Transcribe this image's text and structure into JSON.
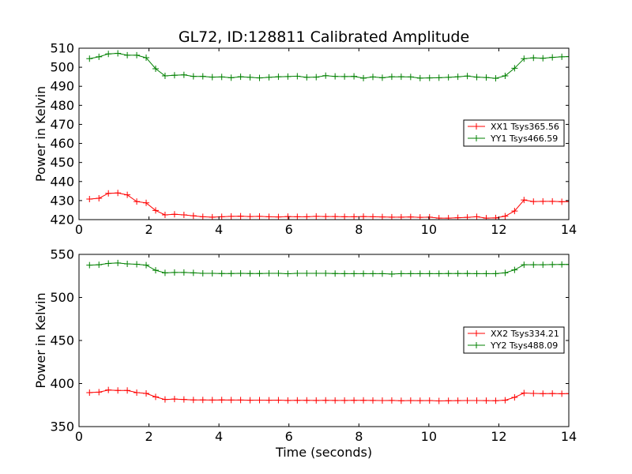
{
  "figure": {
    "title": "GL72, ID:128811 Calibrated Amplitude"
  },
  "chart_data": [
    {
      "type": "line",
      "title": "GL72, ID:128811 Calibrated Amplitude",
      "xlabel": "",
      "ylabel": "Power in Kelvin",
      "xlim": [
        0,
        14
      ],
      "ylim": [
        420,
        510
      ],
      "xticks": [
        0,
        2,
        4,
        6,
        8,
        10,
        12,
        14
      ],
      "yticks": [
        420,
        430,
        440,
        450,
        460,
        470,
        480,
        490,
        500,
        510
      ],
      "grid": false,
      "legend_position": "right",
      "x": [
        0.3,
        0.57,
        0.84,
        1.11,
        1.38,
        1.65,
        1.92,
        2.19,
        2.46,
        2.73,
        3.0,
        3.27,
        3.54,
        3.81,
        4.08,
        4.35,
        4.62,
        4.89,
        5.16,
        5.43,
        5.7,
        5.97,
        6.24,
        6.51,
        6.78,
        7.05,
        7.32,
        7.59,
        7.86,
        8.13,
        8.4,
        8.67,
        8.94,
        9.21,
        9.48,
        9.75,
        10.02,
        10.29,
        10.56,
        10.83,
        11.1,
        11.37,
        11.64,
        11.91,
        12.18,
        12.45,
        12.72,
        12.99,
        13.26,
        13.53,
        13.8,
        14.0
      ],
      "series": [
        {
          "name": "XX1 Tsys365.56",
          "color": "#ff0000",
          "values": [
            430.8,
            431.2,
            433.8,
            434.0,
            433.0,
            429.5,
            428.8,
            424.8,
            422.5,
            422.8,
            422.5,
            422.0,
            421.5,
            421.3,
            421.5,
            421.7,
            421.8,
            421.6,
            421.7,
            421.5,
            421.4,
            421.6,
            421.5,
            421.5,
            421.7,
            421.6,
            421.6,
            421.5,
            421.5,
            421.6,
            421.5,
            421.4,
            421.3,
            421.3,
            421.4,
            421.2,
            421.3,
            420.8,
            420.8,
            421.0,
            421.2,
            421.5,
            420.8,
            420.9,
            421.8,
            424.5,
            430.3,
            429.5,
            429.6,
            429.6,
            429.4,
            429.5
          ]
        },
        {
          "name": "YY1 Tsys466.59",
          "color": "#008000",
          "values": [
            504.5,
            505.5,
            507.0,
            507.3,
            506.3,
            506.3,
            505.0,
            499.2,
            495.5,
            495.8,
            496.0,
            495.2,
            495.2,
            494.8,
            494.9,
            494.5,
            495.0,
            494.7,
            494.4,
            494.7,
            495.0,
            495.1,
            495.3,
            494.7,
            494.8,
            495.6,
            495.2,
            495.1,
            495.2,
            494.3,
            494.9,
            494.5,
            495.0,
            495.0,
            494.9,
            494.3,
            494.4,
            494.5,
            494.7,
            495.0,
            495.4,
            494.8,
            494.6,
            494.2,
            495.5,
            499.5,
            504.5,
            504.9,
            504.7,
            505.2,
            505.5,
            505.6
          ]
        }
      ]
    },
    {
      "type": "line",
      "title": "",
      "xlabel": "Time (seconds)",
      "ylabel": "Power in Kelvin",
      "xlim": [
        0,
        14
      ],
      "ylim": [
        350,
        550
      ],
      "xticks": [
        0,
        2,
        4,
        6,
        8,
        10,
        12,
        14
      ],
      "yticks": [
        350,
        400,
        450,
        500,
        550
      ],
      "grid": false,
      "legend_position": "right",
      "x": [
        0.3,
        0.57,
        0.84,
        1.11,
        1.38,
        1.65,
        1.92,
        2.19,
        2.46,
        2.73,
        3.0,
        3.27,
        3.54,
        3.81,
        4.08,
        4.35,
        4.62,
        4.89,
        5.16,
        5.43,
        5.7,
        5.97,
        6.24,
        6.51,
        6.78,
        7.05,
        7.32,
        7.59,
        7.86,
        8.13,
        8.4,
        8.67,
        8.94,
        9.21,
        9.48,
        9.75,
        10.02,
        10.29,
        10.56,
        10.83,
        11.1,
        11.37,
        11.64,
        11.91,
        12.18,
        12.45,
        12.72,
        12.99,
        13.26,
        13.53,
        13.8,
        14.0
      ],
      "series": [
        {
          "name": "XX2 Tsys334.21",
          "color": "#ff0000",
          "values": [
            389.5,
            390.0,
            392.5,
            392.0,
            392.0,
            389.5,
            388.5,
            384.5,
            381.5,
            382.0,
            381.5,
            381.0,
            381.0,
            380.8,
            381.0,
            380.8,
            380.8,
            380.6,
            380.7,
            380.6,
            380.7,
            380.4,
            380.5,
            380.5,
            380.4,
            380.5,
            380.4,
            380.4,
            380.5,
            380.5,
            380.4,
            380.3,
            380.4,
            380.0,
            380.3,
            380.2,
            380.3,
            379.8,
            380.1,
            380.2,
            380.3,
            380.3,
            380.2,
            380.1,
            380.6,
            384.0,
            389.0,
            388.5,
            388.3,
            388.4,
            388.2,
            388.3
          ]
        },
        {
          "name": "YY2 Tsys488.09",
          "color": "#008000",
          "values": [
            537.5,
            538.0,
            539.5,
            540.0,
            539.0,
            538.5,
            537.5,
            531.5,
            528.5,
            529.0,
            529.0,
            528.5,
            528.0,
            528.0,
            527.8,
            527.8,
            528.0,
            527.8,
            527.8,
            528.0,
            528.0,
            527.5,
            528.0,
            528.0,
            528.0,
            528.0,
            527.8,
            527.6,
            527.6,
            527.6,
            527.6,
            527.6,
            527.2,
            527.6,
            527.6,
            527.6,
            527.6,
            527.6,
            527.8,
            527.8,
            527.8,
            527.6,
            527.6,
            527.6,
            528.5,
            532.0,
            538.0,
            538.0,
            538.0,
            538.2,
            538.3,
            538.3
          ]
        }
      ]
    }
  ]
}
